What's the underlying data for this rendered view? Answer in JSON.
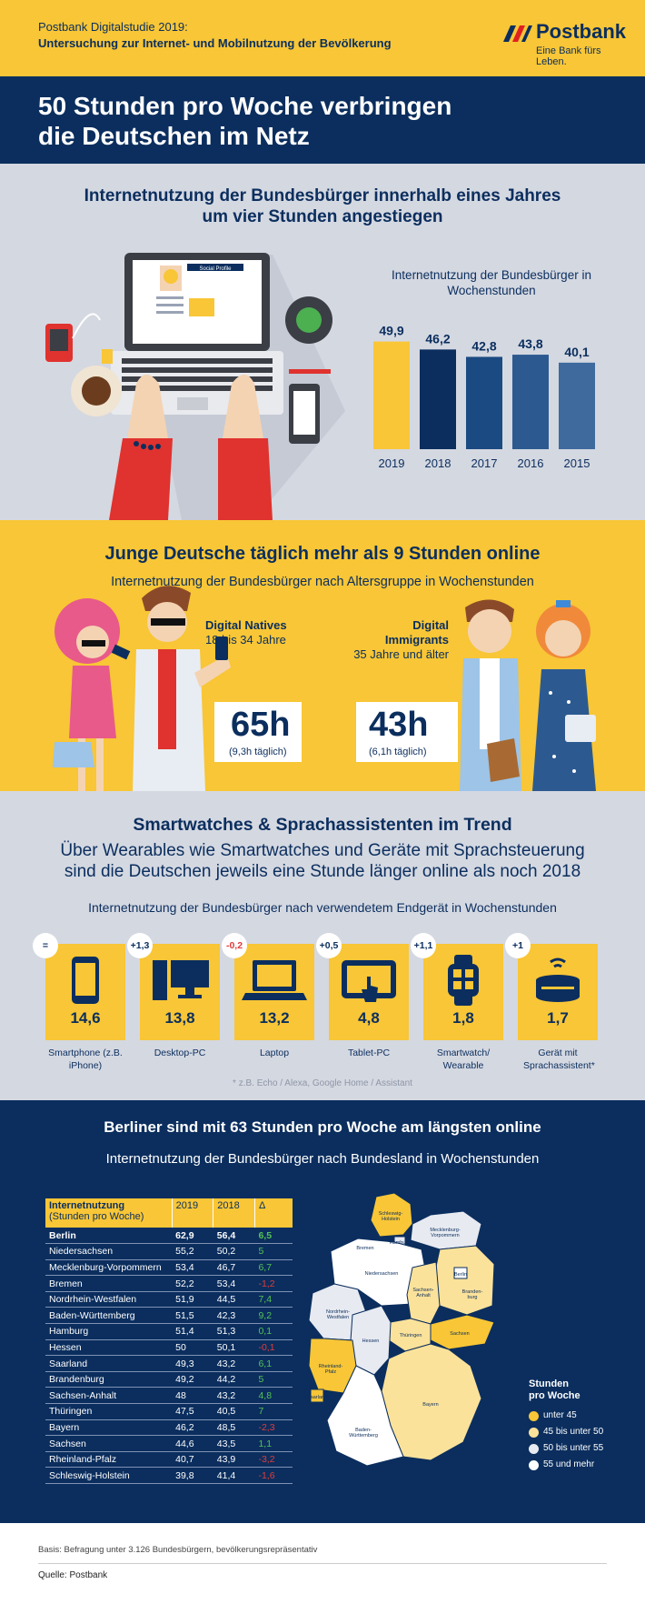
{
  "header": {
    "line1": "Postbank Digitalstudie 2019:",
    "line2": "Untersuchung zur Internet- und Mobilnutzung der Bevölkerung",
    "brand": "Postbank",
    "slogan": "Eine Bank fürs Leben."
  },
  "title": {
    "line1": "50 Stunden pro Woche verbringen",
    "line2": "die Deutschen im Netz"
  },
  "section1": {
    "heading_line1": "Internetnutzung der Bundesbürger innerhalb eines Jahres",
    "heading_line2": "um vier Stunden angestiegen",
    "laptop_label": "Social Profile"
  },
  "section2": {
    "heading": "Junge Deutsche täglich mehr als 9 Stunden online",
    "subheading": "Internetnutzung der Bundesbürger nach Altersgruppe in Wochenstunden",
    "natives": {
      "title": "Digital Natives",
      "sub": "18 bis 34 Jahre",
      "value": "65h",
      "daily": "(9,3h täglich)"
    },
    "immigrants": {
      "title": "Digital Immigrants",
      "sub": "35 Jahre und älter",
      "value": "43h",
      "daily": "(6,1h täglich)"
    }
  },
  "section3": {
    "heading": "Smartwatches & Sprachassistenten im Trend",
    "sub_line1": "Über Wearables wie Smartwatches und Geräte mit Sprachsteuerung",
    "sub_line2": "sind die Deutschen jeweils eine Stunde länger online als noch 2018",
    "footnote": "* z.B. Echo / Alexa, Google Home / Assistant"
  },
  "section4": {
    "heading": "Berliner sind mit 63 Stunden pro Woche am längsten online",
    "subheading": "Internetnutzung der Bundesbürger nach Bundesland in Wochenstunden",
    "legend_title_line1": "Stunden",
    "legend_title_line2": "pro Woche",
    "legend": [
      {
        "label": "unter 45",
        "color": "#f8c636"
      },
      {
        "label": "45 bis unter 50",
        "color": "#fbe29a"
      },
      {
        "label": "50 bis unter 55",
        "color": "#e7eaf1"
      },
      {
        "label": "55 und mehr",
        "color": "#ffffff"
      }
    ],
    "map_labels": {
      "sh": "Schleswig-\nHolstein",
      "mv": "Mecklenburg-\nVorpommern",
      "hb": "Bremen",
      "hh": "Hamburg",
      "ni": "Niedersachsen",
      "be": "Berlin",
      "bb": "Branden-\nburg",
      "st": "Sachsen-\nAnhalt",
      "nw": "Nordrhein-\nWestfalen",
      "sn": "Sachsen",
      "th": "Thüringen",
      "he": "Hessen",
      "rp": "Rheinland-\nPfalz",
      "sl": "Saarland",
      "by": "Bayern",
      "bw": "Baden-\nWürttemberg"
    }
  },
  "footer": {
    "basis": "Basis: Befragung unter 3.126 Bundesbürgern, bevölkerungsrepräsentativ",
    "source": "Quelle: Postbank"
  },
  "chart_data": [
    {
      "type": "bar",
      "title": "Internetnutzung der Bundesbürger in Wochenstunden",
      "categories": [
        "2019",
        "2018",
        "2017",
        "2016",
        "2015"
      ],
      "values": [
        49.9,
        46.2,
        42.8,
        43.8,
        40.1
      ],
      "value_labels": [
        "49,9",
        "46,2",
        "42,8",
        "43,8",
        "40,1"
      ],
      "colors": [
        "#f8c636",
        "#0b2e5e",
        "#1b4a82",
        "#2c5a90",
        "#3e6a9e"
      ]
    },
    {
      "type": "bar",
      "title": "Internetnutzung der Bundesbürger nach verwendetem Endgerät in Wochenstunden",
      "categories": [
        "Smartphone (z.B. iPhone)",
        "Desktop-PC",
        "Laptop",
        "Tablet-PC",
        "Smartwatch/ Wearable",
        "Gerät mit Sprachassistent*"
      ],
      "values": [
        14.6,
        13.8,
        13.2,
        4.8,
        1.8,
        1.7
      ],
      "value_labels": [
        "14,6",
        "13,8",
        "13,2",
        "4,8",
        "1,8",
        "1,7"
      ],
      "changes": [
        "=",
        "+1,3",
        "-0,2",
        "+0,5",
        "+1,1",
        "+1"
      ]
    },
    {
      "type": "table",
      "title": "Internetnutzung der Bundesbürger nach Bundesland in Wochenstunden",
      "columns": [
        "Internetnutzung (Stunden pro Woche)",
        "2019",
        "2018",
        "Δ"
      ],
      "header_main": "Internetnutzung",
      "header_sub": "(Stunden pro Woche)",
      "rows": [
        {
          "name": "Berlin",
          "y2019": "62,9",
          "y2018": "56,4",
          "d": "6,5",
          "neg": false
        },
        {
          "name": "Niedersachsen",
          "y2019": "55,2",
          "y2018": "50,2",
          "d": "5",
          "neg": false
        },
        {
          "name": "Mecklenburg-Vorpommern",
          "y2019": "53,4",
          "y2018": "46,7",
          "d": "6,7",
          "neg": false
        },
        {
          "name": "Bremen",
          "y2019": "52,2",
          "y2018": "53,4",
          "d": "-1,2",
          "neg": true
        },
        {
          "name": "Nordrhein-Westfalen",
          "y2019": "51,9",
          "y2018": "44,5",
          "d": "7,4",
          "neg": false
        },
        {
          "name": "Baden-Württemberg",
          "y2019": "51,5",
          "y2018": "42,3",
          "d": "9,2",
          "neg": false
        },
        {
          "name": "Hamburg",
          "y2019": "51,4",
          "y2018": "51,3",
          "d": "0,1",
          "neg": false
        },
        {
          "name": "Hessen",
          "y2019": "50",
          "y2018": "50,1",
          "d": "-0,1",
          "neg": true
        },
        {
          "name": "Saarland",
          "y2019": "49,3",
          "y2018": "43,2",
          "d": "6,1",
          "neg": false
        },
        {
          "name": "Brandenburg",
          "y2019": "49,2",
          "y2018": "44,2",
          "d": "5",
          "neg": false
        },
        {
          "name": "Sachsen-Anhalt",
          "y2019": "48",
          "y2018": "43,2",
          "d": "4,8",
          "neg": false
        },
        {
          "name": "Thüringen",
          "y2019": "47,5",
          "y2018": "40,5",
          "d": "7",
          "neg": false
        },
        {
          "name": "Bayern",
          "y2019": "46,2",
          "y2018": "48,5",
          "d": "-2,3",
          "neg": true
        },
        {
          "name": "Sachsen",
          "y2019": "44,6",
          "y2018": "43,5",
          "d": "1,1",
          "neg": false
        },
        {
          "name": "Rheinland-Pfalz",
          "y2019": "40,7",
          "y2018": "43,9",
          "d": "-3,2",
          "neg": true
        },
        {
          "name": "Schleswig-Holstein",
          "y2019": "39,8",
          "y2018": "41,4",
          "d": "-1,6",
          "neg": true
        }
      ]
    }
  ]
}
